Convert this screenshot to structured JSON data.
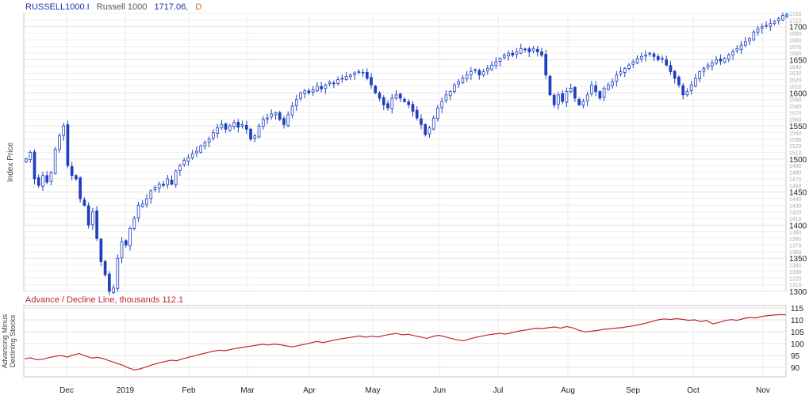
{
  "header": {
    "symbol": "RUSSELL1000.I",
    "name": "Russell 1000",
    "last": "1717.06",
    "period": "D"
  },
  "colors": {
    "candle": "#1f3fbf",
    "line": "#c0262d",
    "grid": "#e3e3e3",
    "axis_text": "#888888",
    "header_blue": "#1a33a8",
    "header_orange": "#e0602a"
  },
  "chart_data": [
    {
      "type": "candlestick",
      "title": "RUSSELL1000.I Russell 1000 1717.06, D",
      "ylabel": "Index Price",
      "ylim": [
        1300,
        1720
      ],
      "y_major_ticks": [
        1300,
        1350,
        1400,
        1450,
        1500,
        1550,
        1600,
        1650,
        1700
      ],
      "y_minor_ticks": [
        1310,
        1320,
        1330,
        1340,
        1360,
        1370,
        1380,
        1390,
        1410,
        1420,
        1430,
        1440,
        1460,
        1470,
        1480,
        1490,
        1510,
        1520,
        1530,
        1540,
        1560,
        1570,
        1580,
        1590,
        1610,
        1620,
        1630,
        1640,
        1660,
        1670,
        1680,
        1690,
        1710,
        1720
      ],
      "x_labels": [
        "Dec",
        "2019",
        "Feb",
        "Mar",
        "Apr",
        "May",
        "Jun",
        "Jul",
        "Aug",
        "Sep",
        "Oct",
        "Nov"
      ],
      "grid": true,
      "series": [
        {
          "name": "Russell 1000",
          "close": [
            1500,
            1510,
            1470,
            1460,
            1475,
            1465,
            1480,
            1515,
            1535,
            1550,
            1490,
            1475,
            1470,
            1440,
            1430,
            1400,
            1420,
            1380,
            1345,
            1325,
            1300,
            1305,
            1350,
            1375,
            1370,
            1395,
            1410,
            1430,
            1432,
            1440,
            1452,
            1457,
            1462,
            1460,
            1470,
            1462,
            1482,
            1490,
            1498,
            1502,
            1508,
            1512,
            1520,
            1525,
            1530,
            1540,
            1547,
            1552,
            1545,
            1550,
            1555,
            1548,
            1552,
            1545,
            1530,
            1535,
            1550,
            1560,
            1562,
            1568,
            1570,
            1560,
            1552,
            1567,
            1580,
            1590,
            1600,
            1603,
            1600,
            1605,
            1610,
            1606,
            1612,
            1616,
            1614,
            1620,
            1622,
            1625,
            1627,
            1630,
            1632,
            1631,
            1622,
            1612,
            1600,
            1592,
            1582,
            1577,
            1592,
            1597,
            1592,
            1587,
            1582,
            1572,
            1562,
            1552,
            1537,
            1547,
            1562,
            1577,
            1587,
            1597,
            1602,
            1612,
            1617,
            1622,
            1627,
            1632,
            1635,
            1627,
            1632,
            1637,
            1642,
            1647,
            1652,
            1657,
            1660,
            1657,
            1662,
            1667,
            1666,
            1662,
            1667,
            1662,
            1657,
            1627,
            1597,
            1582,
            1597,
            1587,
            1602,
            1607,
            1592,
            1582,
            1587,
            1597,
            1612,
            1602,
            1592,
            1607,
            1612,
            1617,
            1627,
            1632,
            1637,
            1642,
            1647,
            1652,
            1655,
            1657,
            1660,
            1655,
            1650,
            1652,
            1642,
            1632,
            1622,
            1612,
            1597,
            1602,
            1612,
            1622,
            1632,
            1637,
            1642,
            1645,
            1650,
            1648,
            1652,
            1657,
            1662,
            1667,
            1672,
            1677,
            1682,
            1692,
            1697,
            1700,
            1702,
            1705,
            1708,
            1712,
            1717.06
          ]
        }
      ]
    },
    {
      "type": "line",
      "title": "Advance / Decline Line, thousands 112.1",
      "ylabel": "Advancing Minus Declining Stocks",
      "ylim": [
        86,
        116
      ],
      "y_ticks": [
        90,
        95,
        100,
        105,
        110,
        115
      ],
      "grid": true,
      "series": [
        {
          "name": "Advance / Decline Line",
          "values": [
            93.6,
            94.0,
            93.2,
            93.4,
            94.1,
            94.6,
            95.0,
            94.3,
            95.2,
            95.8,
            94.8,
            93.9,
            94.2,
            93.6,
            92.7,
            91.8,
            91.0,
            89.8,
            88.9,
            89.4,
            90.2,
            91.1,
            91.8,
            92.4,
            93.0,
            92.8,
            93.6,
            94.3,
            94.9,
            95.6,
            96.2,
            96.8,
            97.2,
            97.0,
            97.6,
            98.1,
            98.5,
            98.9,
            99.3,
            99.7,
            99.4,
            99.8,
            99.5,
            99.0,
            98.6,
            99.2,
            99.7,
            100.3,
            100.9,
            100.4,
            101.0,
            101.6,
            102.0,
            102.4,
            102.8,
            103.2,
            102.7,
            103.1,
            102.8,
            103.4,
            103.9,
            104.3,
            103.7,
            103.9,
            103.3,
            102.8,
            102.2,
            103.0,
            103.5,
            102.9,
            102.2,
            101.6,
            101.2,
            101.9,
            102.6,
            103.1,
            103.6,
            104.0,
            104.3,
            104.0,
            104.6,
            105.2,
            105.6,
            106.0,
            106.5,
            106.3,
            106.7,
            107.0,
            106.5,
            107.2,
            106.6,
            105.6,
            104.9,
            105.2,
            105.5,
            106.0,
            106.2,
            106.5,
            106.7,
            107.1,
            107.5,
            108.0,
            108.6,
            109.3,
            110.0,
            110.4,
            110.1,
            110.5,
            110.2,
            109.8,
            110.0,
            109.3,
            109.7,
            108.3,
            108.9,
            109.7,
            110.1,
            109.8,
            110.5,
            111.0,
            110.8,
            111.4,
            111.8,
            112.0,
            112.2,
            112.1
          ]
        }
      ]
    }
  ]
}
